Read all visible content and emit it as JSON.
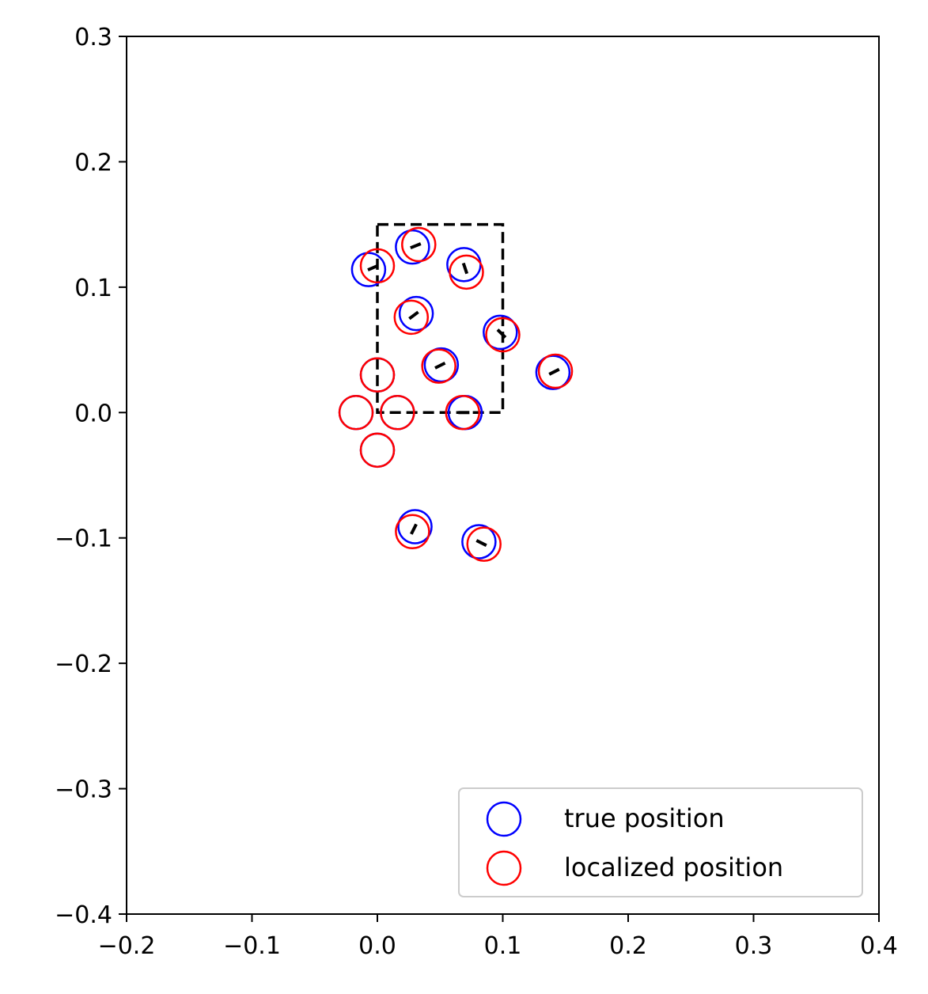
{
  "chart_data": {
    "type": "scatter",
    "title": "",
    "xlabel": "",
    "ylabel": "",
    "xlim": [
      -0.2,
      0.4
    ],
    "ylim": [
      -0.4,
      0.3
    ],
    "xticks": [
      -0.2,
      -0.1,
      0.0,
      0.1,
      0.2,
      0.3,
      0.4
    ],
    "xtick_labels": [
      "−0.2",
      "−0.1",
      "0.0",
      "0.1",
      "0.2",
      "0.3",
      "0.4"
    ],
    "yticks": [
      0.3,
      0.2,
      0.1,
      0.0,
      -0.1,
      -0.2,
      -0.3,
      -0.4
    ],
    "ytick_labels": [
      "0.3",
      "0.2",
      "0.1",
      "0.0",
      "−0.1",
      "−0.2",
      "−0.3",
      "−0.4"
    ],
    "grid": false,
    "legend_position": "bottom-right",
    "region_rectangle": {
      "x0": 0.0,
      "y0": 0.0,
      "x1": 0.1,
      "y1": 0.15,
      "style": "dashed",
      "color": "#000000"
    },
    "series": [
      {
        "name": "true position",
        "color": "#0000ff",
        "marker": "hollow-circle",
        "points": [
          [
            -0.007,
            0.114
          ],
          [
            0.028,
            0.132
          ],
          [
            0.069,
            0.118
          ],
          [
            0.031,
            0.079
          ],
          [
            0.098,
            0.064
          ],
          [
            0.051,
            0.038
          ],
          [
            0.14,
            0.032
          ],
          [
            0.0,
            0.03
          ],
          [
            0.07,
            0.0
          ],
          [
            0.016,
            0.0
          ],
          [
            -0.017,
            0.0
          ],
          [
            0.0,
            -0.03
          ],
          [
            0.03,
            -0.091
          ],
          [
            0.081,
            -0.103
          ]
        ]
      },
      {
        "name": "localized position",
        "color": "#ff0000",
        "marker": "hollow-circle",
        "points": [
          [
            0.0,
            0.117
          ],
          [
            0.033,
            0.134
          ],
          [
            0.071,
            0.112
          ],
          [
            0.027,
            0.076
          ],
          [
            0.1,
            0.062
          ],
          [
            0.049,
            0.037
          ],
          [
            0.142,
            0.033
          ],
          [
            0.0,
            0.03
          ],
          [
            0.068,
            0.0
          ],
          [
            0.016,
            0.0
          ],
          [
            -0.017,
            0.0
          ],
          [
            0.0,
            -0.03
          ],
          [
            0.028,
            -0.095
          ],
          [
            0.085,
            -0.105
          ]
        ]
      }
    ]
  }
}
